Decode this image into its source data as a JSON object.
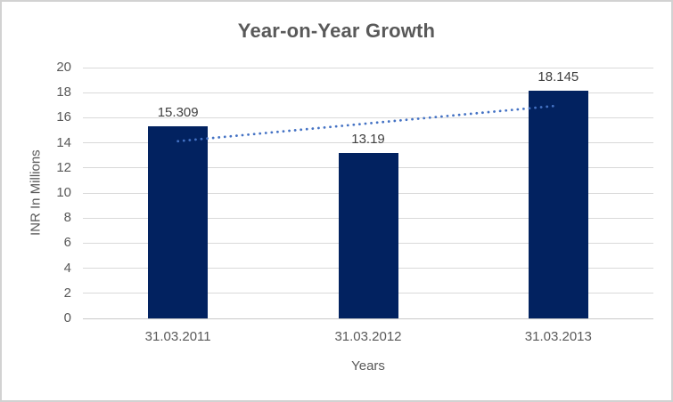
{
  "chart_data": {
    "type": "bar",
    "title": "Year-on-Year Growth",
    "categories": [
      "31.03.2011",
      "31.03.2012",
      "31.03.2013"
    ],
    "values": [
      15.309,
      13.19,
      18.145
    ],
    "data_labels": [
      "15.309",
      "13.19",
      "18.145"
    ],
    "xlabel": "Years",
    "ylabel": "INR In Millions",
    "ylim": [
      0,
      20
    ],
    "ytick_step": 2,
    "grid": true,
    "legend": "none",
    "bar_color": "#022260",
    "axis_text_color": "#595959",
    "data_label_color": "#404040",
    "gridline_color": "#d9d9d9",
    "trendline": {
      "type": "linear",
      "style": "dotted",
      "color": "#4472c4",
      "start_value": 14.13,
      "end_value": 16.97
    }
  }
}
